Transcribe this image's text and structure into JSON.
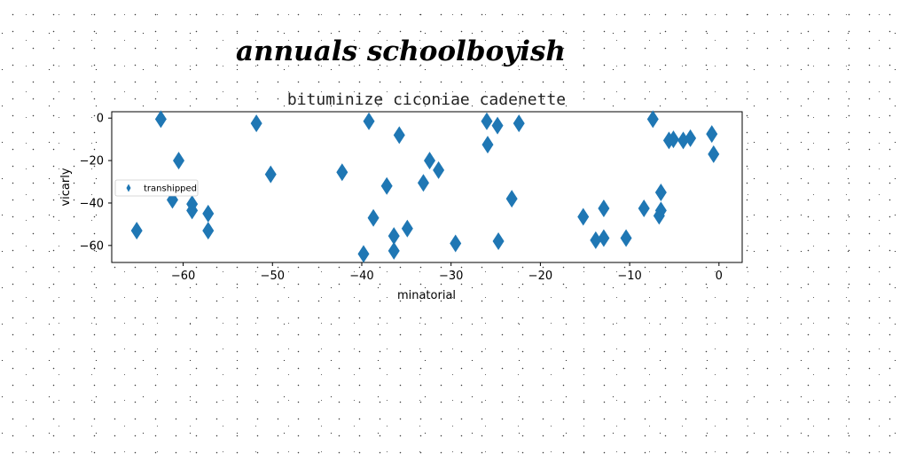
{
  "chart_data": {
    "type": "scatter",
    "suptitle": "annuals schoolboyish",
    "title": "bituminize ciconiae cadenette",
    "xlabel": "minatorial",
    "ylabel": "vicarly",
    "xlim": [
      -68,
      2.6
    ],
    "ylim": [
      -68,
      3
    ],
    "xticks": [
      -60,
      -50,
      -40,
      -30,
      -20,
      -10,
      0
    ],
    "yticks": [
      0,
      -20,
      -40,
      -60
    ],
    "xtick_labels": [
      "−60",
      "−50",
      "−40",
      "−30",
      "−20",
      "−10",
      "0"
    ],
    "ytick_labels": [
      "0",
      "−20",
      "−40",
      "−60"
    ],
    "legend_location": "center-left",
    "grid": false,
    "series": [
      {
        "name": "transhipped",
        "color": "#1f77b4",
        "marker": "thin_diamond",
        "points": [
          [
            -62.5,
            -0.5
          ],
          [
            -61.2,
            -38.5
          ],
          [
            -60.5,
            -20
          ],
          [
            -59,
            -40.5
          ],
          [
            -59,
            -43.5
          ],
          [
            -57.2,
            -45
          ],
          [
            -57.2,
            -53
          ],
          [
            -65.2,
            -53
          ],
          [
            -51.8,
            -2.5
          ],
          [
            -50.2,
            -26.5
          ],
          [
            -42.2,
            -25.5
          ],
          [
            -39.8,
            -64
          ],
          [
            -39.2,
            -1.5
          ],
          [
            -38.7,
            -47
          ],
          [
            -37.2,
            -32
          ],
          [
            -36.4,
            -55.5
          ],
          [
            -36.4,
            -62.5
          ],
          [
            -35.8,
            -8
          ],
          [
            -34.9,
            -52
          ],
          [
            -33.1,
            -30.5
          ],
          [
            -32.4,
            -20
          ],
          [
            -31.4,
            -24.5
          ],
          [
            -29.5,
            -59
          ],
          [
            -26,
            -1.5
          ],
          [
            -25.9,
            -12.5
          ],
          [
            -24.8,
            -3.5
          ],
          [
            -24.7,
            -58
          ],
          [
            -23.2,
            -38
          ],
          [
            -22.4,
            -2.5
          ],
          [
            -15.2,
            -46.5
          ],
          [
            -13.8,
            -57.5
          ],
          [
            -12.9,
            -56.5
          ],
          [
            -12.9,
            -42.5
          ],
          [
            -10.4,
            -56.5
          ],
          [
            -8.4,
            -42.5
          ],
          [
            -7.4,
            -0.5
          ],
          [
            -6.7,
            -46
          ],
          [
            -6.5,
            -43.5
          ],
          [
            -6.5,
            -35
          ],
          [
            -5.6,
            -10.5
          ],
          [
            -5.1,
            -10
          ],
          [
            -4,
            -10.5
          ],
          [
            -3.2,
            -9.5
          ],
          [
            -0.8,
            -7.5
          ],
          [
            -0.6,
            -17
          ]
        ]
      }
    ]
  }
}
